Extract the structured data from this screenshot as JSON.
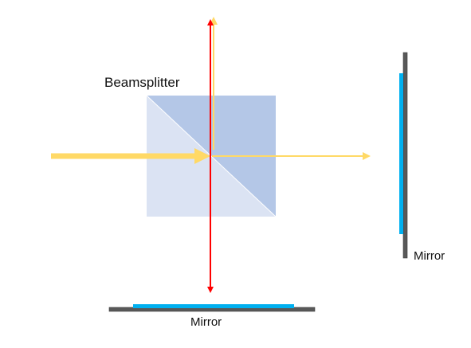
{
  "labels": {
    "beamsplitter": "Beamsplitter",
    "right_mirror": "Mirror",
    "bottom_mirror": "Mirror"
  },
  "colors": {
    "cube_light": "#dbe3f3",
    "cube_dark": "#b4c7e7",
    "beam_yellow": "#ffd966",
    "beam_red": "#ff0000",
    "mirror_body": "#595959",
    "mirror_coating": "#00b0f0",
    "text": "#111111"
  }
}
